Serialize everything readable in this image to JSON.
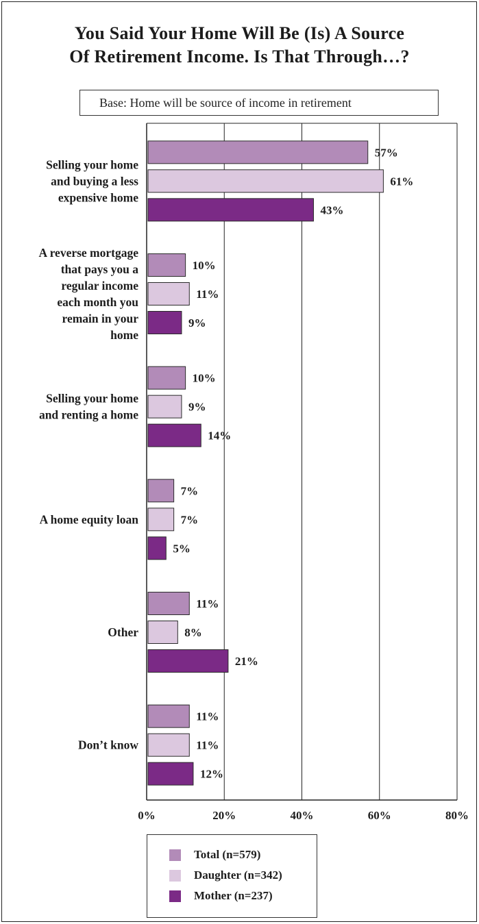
{
  "title": {
    "line1": "You Said Your Home Will Be (Is) A Source",
    "line2": "Of Retirement Income. Is That Through…?"
  },
  "base_note": "Base:  Home will be source of income in retirement",
  "colors": {
    "total": "#b28bb8",
    "daughter": "#dcc8df",
    "mother": "#7b2a86"
  },
  "legend": [
    {
      "key": "total",
      "label": "Total (n=579)"
    },
    {
      "key": "daughter",
      "label": "Daughter (n=342)"
    },
    {
      "key": "mother",
      "label": "Mother (n=237)"
    }
  ],
  "chart_data": {
    "type": "bar",
    "orientation": "horizontal",
    "categories": [
      [
        "Selling your home",
        "and buying a less",
        "expensive home"
      ],
      [
        "A reverse mortgage",
        "that pays you a",
        "regular income",
        "each month you",
        "remain in your",
        "home"
      ],
      [
        "Selling your home",
        "and renting a home"
      ],
      [
        "A home equity loan"
      ],
      [
        "Other"
      ],
      [
        "Don’t know"
      ]
    ],
    "series": [
      {
        "name": "Total (n=579)",
        "key": "total",
        "values": [
          57,
          10,
          10,
          7,
          11,
          11
        ]
      },
      {
        "name": "Daughter (n=342)",
        "key": "daughter",
        "values": [
          61,
          11,
          9,
          7,
          8,
          11
        ]
      },
      {
        "name": "Mother (n=237)",
        "key": "mother",
        "values": [
          43,
          9,
          14,
          5,
          21,
          12
        ]
      }
    ],
    "value_suffix": "%",
    "xlim": [
      0,
      80
    ],
    "xticks": [
      0,
      20,
      40,
      60,
      80
    ],
    "xtick_labels": [
      "0%",
      "20%",
      "40%",
      "60%",
      "80%"
    ],
    "grid": "vertical",
    "legend_position": "bottom"
  }
}
